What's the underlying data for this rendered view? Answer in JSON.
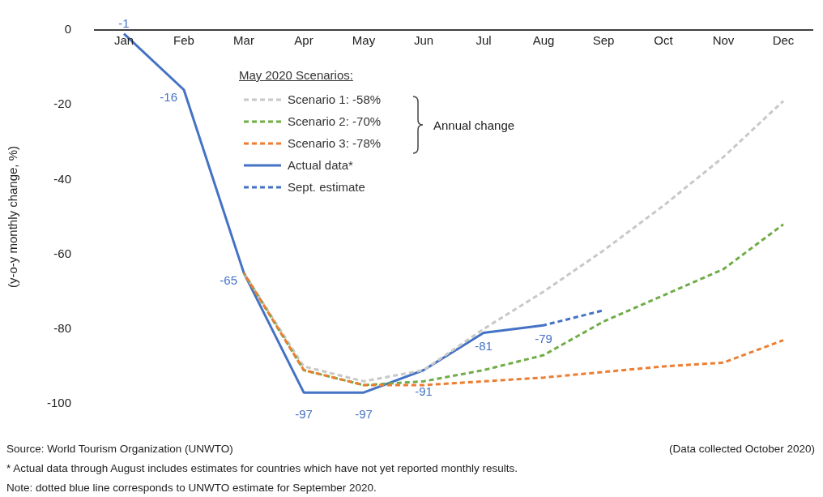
{
  "chart_data": {
    "type": "line",
    "ylabel": "(y-o-y monthly change, %)",
    "legend_title": "May 2020 Scenarios:",
    "categories": [
      "Jan",
      "Feb",
      "Mar",
      "Apr",
      "May",
      "Jun",
      "Jul",
      "Aug",
      "Sep",
      "Oct",
      "Nov",
      "Dec"
    ],
    "ylim": [
      -100,
      0
    ],
    "yticks": [
      0,
      -20,
      -40,
      -60,
      -80,
      -100
    ],
    "grid": false,
    "legend": "top",
    "marker": "none",
    "series": [
      {
        "name": "Scenario 1:  -58%",
        "color": "#c8c8c8",
        "line_style": "dashed",
        "values": [
          null,
          null,
          -65,
          -90,
          -94,
          -91,
          -80,
          -70,
          -59,
          -47,
          -34,
          -19
        ]
      },
      {
        "name": "Scenario 2:  -70%",
        "color": "#70ad47",
        "line_style": "dashed",
        "values": [
          null,
          null,
          -65,
          -91,
          -95,
          -94,
          -91,
          -87,
          -78,
          -71,
          -64,
          -52
        ]
      },
      {
        "name": "Scenario 3:  -78%",
        "color": "#ed7d31",
        "line_style": "dashed",
        "values": [
          null,
          null,
          -65,
          -91,
          -95,
          -95,
          -94,
          -93,
          -91.5,
          -90,
          -89,
          -83
        ]
      },
      {
        "name": "Actual data*",
        "color": "#4472c4",
        "line_style": "solid",
        "values": [
          -1,
          -16,
          -65,
          -97,
          -97,
          -91,
          -81,
          -79,
          null,
          null,
          null,
          null
        ],
        "value_labels": [
          "-1",
          "-16",
          "-65",
          "-97",
          "-97",
          "-91",
          "-81",
          "-79",
          null,
          null,
          null,
          null
        ]
      },
      {
        "name": "Sept. estimate",
        "color": "#4472c4",
        "line_style": "dashed",
        "values": [
          null,
          null,
          null,
          null,
          null,
          null,
          null,
          -79,
          -75,
          null,
          null,
          null
        ]
      }
    ],
    "annotations": [
      "Annual change",
      "Source: World Tourism Organization (UNWTO)",
      "(Data collected October 2020)",
      "* Actual data through August includes estimates for countries which have not yet reported monthly results.",
      "Note: dotted blue line corresponds to UNWTO estimate for September 2020."
    ]
  }
}
